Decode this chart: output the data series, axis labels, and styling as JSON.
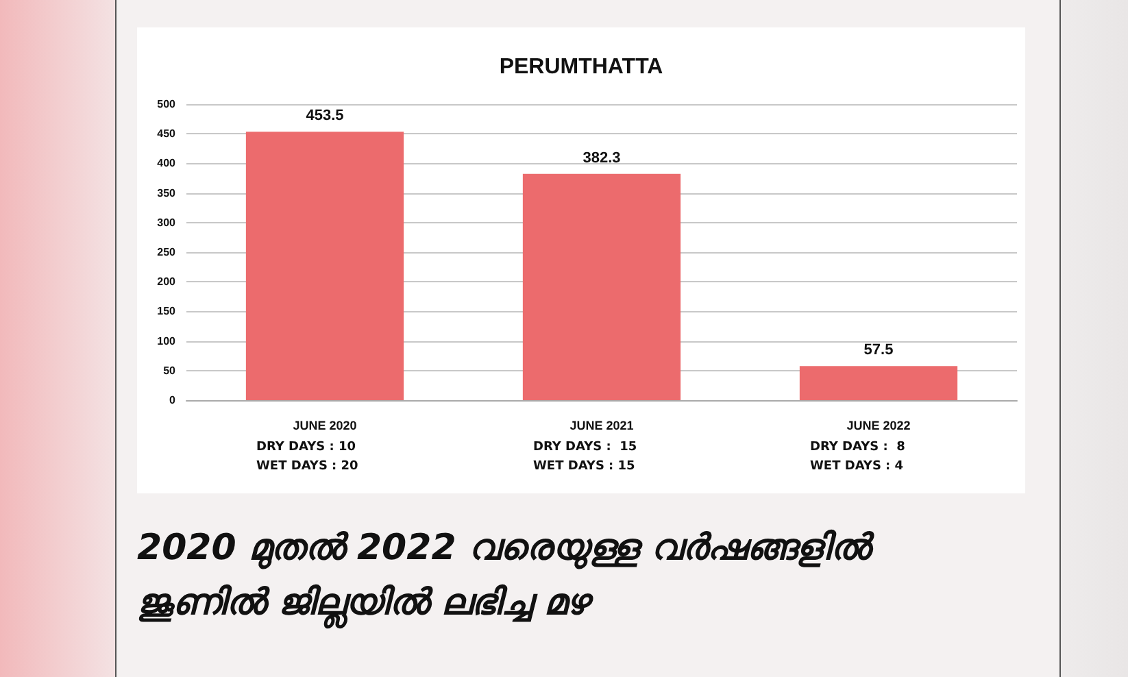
{
  "chart_data": {
    "type": "bar",
    "title": "PERUMTHATTA",
    "categories": [
      "JUNE 2020",
      "JUNE 2021",
      "JUNE 2022"
    ],
    "values": [
      453.5,
      382.3,
      57.5
    ],
    "color": "#ec6b6d",
    "ylim": [
      0,
      500
    ],
    "yticks": [
      0,
      50,
      100,
      150,
      200,
      250,
      300,
      350,
      400,
      450,
      500
    ],
    "grid": "y",
    "data_labels": true,
    "annotations": [
      "DRY DAYS : 10",
      "WET DAYS : 20",
      "DRY DAYS :  15",
      "WET DAYS : 15",
      "DRY DAYS :  8",
      "WET DAYS : 4",
      "2020 മുതൽ 2022 വരെയുള്ള വർഷങ്ങളിൽ ജൂണിൽ ജില്ലയിൽ ലഭിച്ച മഴ"
    ]
  }
}
